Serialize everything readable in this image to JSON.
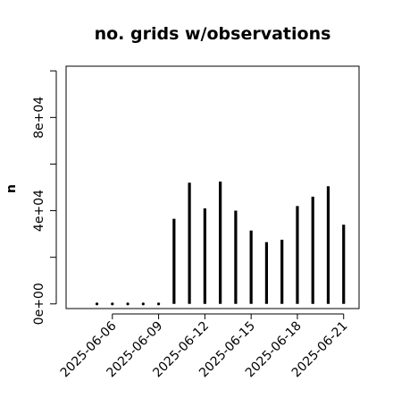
{
  "chart_data": {
    "type": "bar",
    "title": "no. grids w/observations",
    "xlabel": "",
    "ylabel": "n",
    "x": [
      "2025-06-05",
      "2025-06-06",
      "2025-06-07",
      "2025-06-08",
      "2025-06-09",
      "2025-06-10",
      "2025-06-11",
      "2025-06-12",
      "2025-06-13",
      "2025-06-14",
      "2025-06-15",
      "2025-06-16",
      "2025-06-17",
      "2025-06-18",
      "2025-06-19",
      "2025-06-20",
      "2025-06-21"
    ],
    "values": [
      0,
      0,
      0,
      0,
      0,
      36500,
      52000,
      41000,
      52500,
      40000,
      31500,
      26500,
      27500,
      42000,
      46000,
      50500,
      34000
    ],
    "xlim": [
      "2025-06-03",
      "2025-06-22"
    ],
    "ylim": [
      -2000,
      102000
    ],
    "yticks": [
      0,
      20000,
      40000,
      60000,
      80000,
      100000
    ],
    "ytick_labels": [
      "0e+00",
      "",
      "4e+04",
      "",
      "8e+04",
      ""
    ],
    "xticks": [
      "2025-06-06",
      "2025-06-09",
      "2025-06-12",
      "2025-06-15",
      "2025-06-18",
      "2025-06-21"
    ],
    "xtick_labels": [
      "2025-06-06",
      "2025-06-09",
      "2025-06-12",
      "2025-06-15",
      "2025-06-18",
      "2025-06-21"
    ],
    "highlight_tick": "2025-06-12",
    "colors": {
      "bars": "#000000",
      "highlight_tick": "#228B22",
      "axis": "#000000"
    },
    "grid": false
  }
}
